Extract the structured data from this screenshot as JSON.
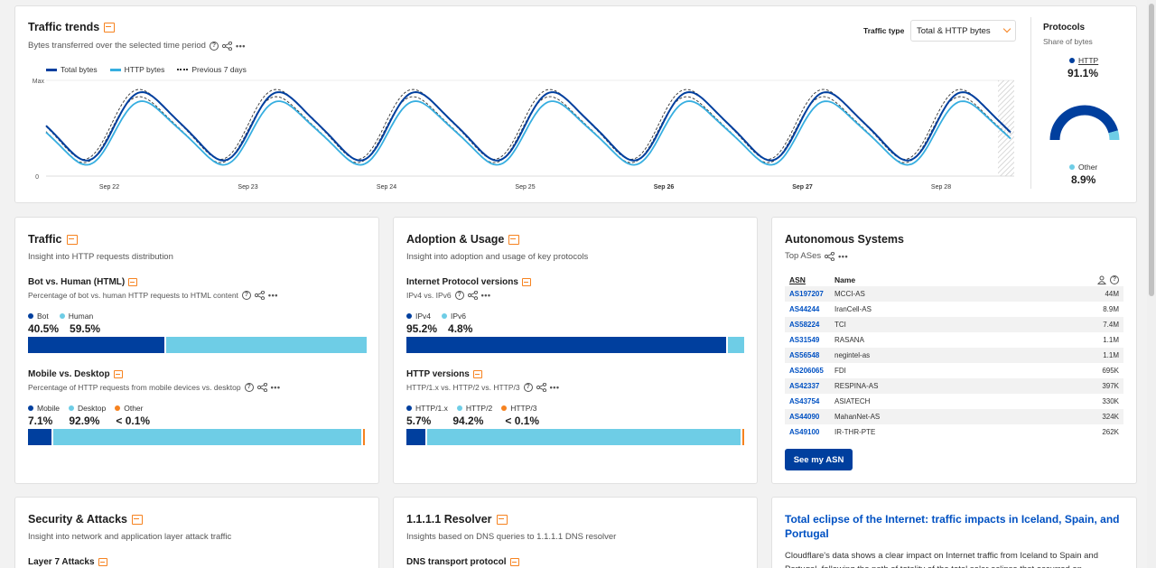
{
  "traffic_trends": {
    "title": "Traffic trends",
    "subtitle": "Bytes transferred over the selected time period",
    "traffic_type_label": "Traffic type",
    "traffic_type_value": "Total & HTTP bytes",
    "legend": [
      "Total bytes",
      "HTTP bytes",
      "Previous 7 days"
    ],
    "y_max_label": "Max",
    "y_min_label": "0",
    "x_labels": [
      "Sep 22",
      "Sep 23",
      "Sep 24",
      "Sep 25",
      "Sep 26",
      "Sep 27",
      "Sep 28"
    ]
  },
  "protocols": {
    "title": "Protocols",
    "subtitle": "Share of bytes",
    "http_label": "HTTP",
    "http_value": "91.1%",
    "other_label": "Other",
    "other_value": "8.9%",
    "http_share": 0.911
  },
  "traffic": {
    "title": "Traffic",
    "subtitle": "Insight into HTTP requests distribution",
    "bot_human": {
      "title": "Bot vs. Human (HTML)",
      "subtitle": "Percentage of bot vs. human HTTP requests to HTML content",
      "labels": [
        "Bot",
        "Human"
      ],
      "values": [
        "40.5%",
        "59.5%"
      ],
      "shares": [
        40.5,
        59.5
      ]
    },
    "mobile_desktop": {
      "title": "Mobile vs. Desktop",
      "subtitle": "Percentage of HTTP requests from mobile devices vs. desktop",
      "labels": [
        "Mobile",
        "Desktop",
        "Other"
      ],
      "values": [
        "7.1%",
        "92.9%",
        "< 0.1%"
      ],
      "shares": [
        7.1,
        92.9,
        0.05
      ]
    }
  },
  "adoption": {
    "title": "Adoption & Usage",
    "subtitle": "Insight into adoption and usage of key protocols",
    "ip_versions": {
      "title": "Internet Protocol versions",
      "subtitle": "IPv4 vs. IPv6",
      "labels": [
        "IPv4",
        "IPv6"
      ],
      "values": [
        "95.2%",
        "4.8%"
      ],
      "shares": [
        95.2,
        4.8
      ]
    },
    "http_versions": {
      "title": "HTTP versions",
      "subtitle": "HTTP/1.x vs. HTTP/2 vs. HTTP/3",
      "labels": [
        "HTTP/1.x",
        "HTTP/2",
        "HTTP/3"
      ],
      "values": [
        "5.7%",
        "94.2%",
        "< 0.1%"
      ],
      "shares": [
        5.7,
        94.2,
        0.1
      ]
    }
  },
  "asn": {
    "title": "Autonomous Systems",
    "subtitle": "Top ASes",
    "col_asn": "ASN",
    "col_name": "Name",
    "rows": [
      {
        "asn": "AS197207",
        "name": "MCCI-AS",
        "value": "44M"
      },
      {
        "asn": "AS44244",
        "name": "IranCell-AS",
        "value": "8.9M"
      },
      {
        "asn": "AS58224",
        "name": "TCI",
        "value": "7.4M"
      },
      {
        "asn": "AS31549",
        "name": "RASANA",
        "value": "1.1M"
      },
      {
        "asn": "AS56548",
        "name": "negintel-as",
        "value": "1.1M"
      },
      {
        "asn": "AS206065",
        "name": "FDI",
        "value": "695K"
      },
      {
        "asn": "AS42337",
        "name": "RESPINA-AS",
        "value": "397K"
      },
      {
        "asn": "AS43754",
        "name": "ASIATECH",
        "value": "330K"
      },
      {
        "asn": "AS44090",
        "name": "MahanNet-AS",
        "value": "324K"
      },
      {
        "asn": "AS49100",
        "name": "IR-THR-PTE",
        "value": "262K"
      }
    ],
    "button": "See my ASN"
  },
  "security": {
    "title": "Security & Attacks",
    "subtitle": "Insight into network and application layer attack traffic",
    "section": "Layer 7 Attacks"
  },
  "resolver": {
    "title": "1.1.1.1 Resolver",
    "subtitle": "Insights based on DNS queries to 1.1.1.1 DNS resolver",
    "section": "DNS transport protocol"
  },
  "article": {
    "title": "Total eclipse of the Internet: traffic impacts in Iceland, Spain, and Portugal",
    "body": "Cloudflare's data shows a clear impact on Internet traffic from Iceland to Spain and Portugal, following the path of totality of the total solar eclipse that occurred on"
  },
  "colors": {
    "total": "#003f9e",
    "http": "#36aee0",
    "light": "#6ecde6",
    "orange": "#f6821f",
    "link": "#0051c3"
  }
}
